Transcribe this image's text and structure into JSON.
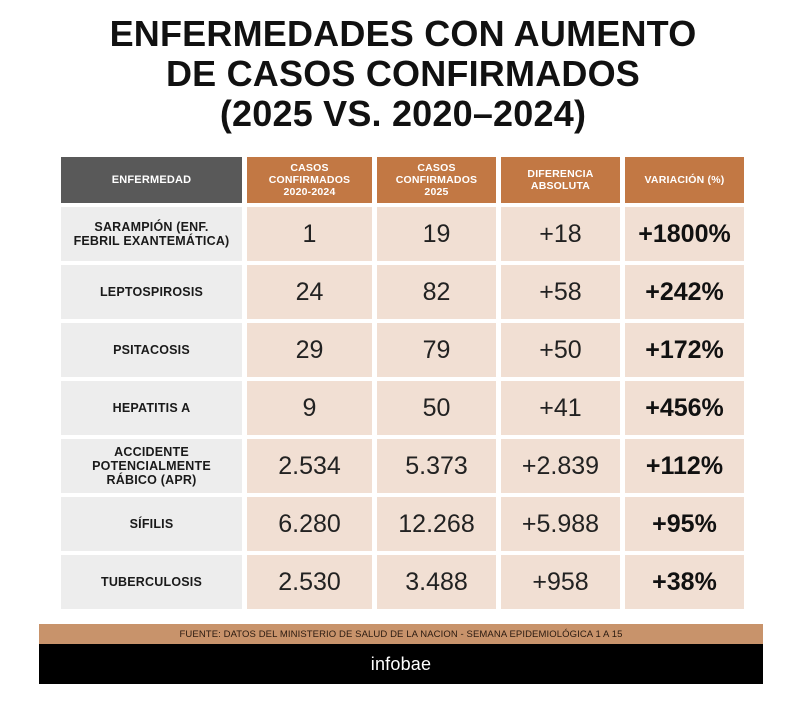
{
  "title_lines": [
    "ENFERMEDADES CON AUMENTO",
    "DE CASOS CONFIRMADOS",
    "(2025 VS. 2020–2024)"
  ],
  "headers": {
    "disease": "ENFERMEDAD",
    "cases_2020_2024": [
      "CASOS",
      "CONFIRMADOS",
      "2020-2024"
    ],
    "cases_2025": [
      "CASOS",
      "CONFIRMADOS",
      "2025"
    ],
    "abs_diff": [
      "DIFERENCIA",
      "ABSOLUTA"
    ],
    "variation": "VARIACIÓN (%)"
  },
  "rows": [
    {
      "disease_lines": [
        "SARAMPIÓN (ENF.",
        "FEBRIL EXANTEMÁTICA)"
      ],
      "c2020_2024": "1",
      "c2025": "19",
      "diff": "+18",
      "var": "+1800%"
    },
    {
      "disease_lines": [
        "LEPTOSPIROSIS"
      ],
      "c2020_2024": "24",
      "c2025": "82",
      "diff": "+58",
      "var": "+242%"
    },
    {
      "disease_lines": [
        "PSITACOSIS"
      ],
      "c2020_2024": "29",
      "c2025": "79",
      "diff": "+50",
      "var": "+172%"
    },
    {
      "disease_lines": [
        "HEPATITIS A"
      ],
      "c2020_2024": "9",
      "c2025": "50",
      "diff": "+41",
      "var": "+456%"
    },
    {
      "disease_lines": [
        "ACCIDENTE",
        "POTENCIALMENTE",
        "RÁBICO (APR)"
      ],
      "c2020_2024": "2.534",
      "c2025": "5.373",
      "diff": "+2.839",
      "var": "+112%"
    },
    {
      "disease_lines": [
        "SÍFILIS"
      ],
      "c2020_2024": "6.280",
      "c2025": "12.268",
      "diff": "+5.988",
      "var": "+95%"
    },
    {
      "disease_lines": [
        "TUBERCULOSIS"
      ],
      "c2020_2024": "2.530",
      "c2025": "3.488",
      "diff": "+958",
      "var": "+38%"
    }
  ],
  "source": "FUENTE: DATOS DEL MINISTERIO DE SALUD DE LA NACION - SEMANA EPIDEMIOLÓGICA  1 A 15",
  "brand": "infobae",
  "colors": {
    "header_dark": "#595959",
    "header_accent": "#c27844",
    "name_bg": "#ededed",
    "value_bg": "#f1dfd3",
    "source_bar": "#c8936b",
    "brand_bar": "#000000"
  },
  "chart_data": {
    "type": "table",
    "columns": [
      "ENFERMEDAD",
      "CASOS CONFIRMADOS 2020-2024",
      "CASOS CONFIRMADOS 2025",
      "DIFERENCIA ABSOLUTA",
      "VARIACIÓN (%)"
    ],
    "rows": [
      [
        "SARAMPIÓN (ENF. FEBRIL EXANTEMÁTICA)",
        1,
        19,
        18,
        1800
      ],
      [
        "LEPTOSPIROSIS",
        24,
        82,
        58,
        242
      ],
      [
        "PSITACOSIS",
        29,
        79,
        50,
        172
      ],
      [
        "HEPATITIS A",
        9,
        50,
        41,
        456
      ],
      [
        "ACCIDENTE POTENCIALMENTE RÁBICO (APR)",
        2534,
        5373,
        2839,
        112
      ],
      [
        "SÍFILIS",
        6280,
        12268,
        5988,
        95
      ],
      [
        "TUBERCULOSIS",
        2530,
        3488,
        958,
        38
      ]
    ]
  }
}
